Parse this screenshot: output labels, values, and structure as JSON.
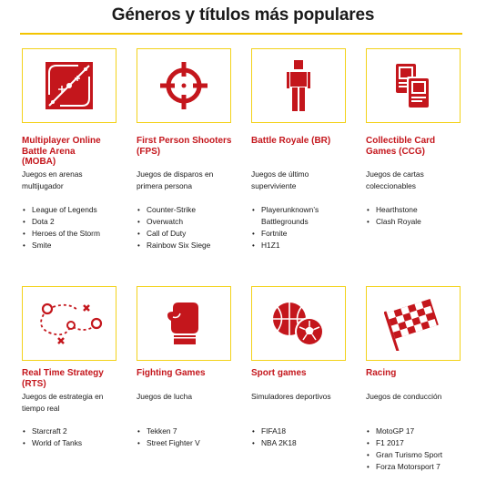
{
  "page": {
    "title": "Géneros y títulos más populares"
  },
  "rows": [
    [
      {
        "icon": "moba-map-icon",
        "category_lines": [
          "Multiplayer Online",
          "Battle Arena",
          "(MOBA)"
        ],
        "desc_lines": [
          "Juegos en arenas",
          "multijugador"
        ],
        "titles": [
          "League of Legends",
          "Dota 2",
          "Heroes of the Storm",
          "Smite"
        ]
      },
      {
        "icon": "crosshair-icon",
        "category_lines": [
          "First Person Shooters",
          "(FPS)"
        ],
        "desc_lines": [
          "Juegos de disparos en",
          "primera persona"
        ],
        "titles": [
          "Counter-Strike",
          "Overwatch",
          "Call of Duty",
          "Rainbow Six Siege"
        ]
      },
      {
        "icon": "standing-figure-icon",
        "category_lines": [
          "Battle Royale  (BR)"
        ],
        "desc_lines": [
          "Juegos de último",
          "superviviente"
        ],
        "titles": [
          "Playerunknown’s",
          "Battlegrounds",
          "Fortnite",
          "H1Z1"
        ],
        "continuation_index": 1
      },
      {
        "icon": "trading-cards-icon",
        "category_lines": [
          "Collectible Card",
          "Games (CCG)"
        ],
        "desc_lines": [
          "Juegos de cartas",
          "coleccionables"
        ],
        "titles": [
          "Hearthstone",
          "Clash Royale"
        ]
      }
    ],
    [
      {
        "icon": "strategy-plan-icon",
        "category_lines": [
          "Real Time Strategy",
          "(RTS)"
        ],
        "desc_lines": [
          "Juegos de estrategia en",
          "tiempo real"
        ],
        "titles": [
          "Starcraft 2",
          "World of Tanks"
        ]
      },
      {
        "icon": "boxing-glove-icon",
        "category_lines": [
          "Fighting Games"
        ],
        "desc_lines": [
          "Juegos de lucha"
        ],
        "titles": [
          "Tekken 7",
          "Street Fighter V"
        ]
      },
      {
        "icon": "sports-balls-icon",
        "category_lines": [
          "Sport games"
        ],
        "desc_lines": [
          "Simuladores deportivos"
        ],
        "titles": [
          "FIFA18",
          "NBA 2K18"
        ]
      },
      {
        "icon": "checkered-flag-icon",
        "category_lines": [
          "Racing"
        ],
        "desc_lines": [
          "Juegos de conducción"
        ],
        "titles": [
          "MotoGP 17",
          "F1 2017",
          "Gran Turismo Sport",
          "Forza Motorsport 7"
        ]
      }
    ]
  ],
  "colors": {
    "accent_red": "#c4161c",
    "frame_yellow": "#f3d21a",
    "rule_yellow": "#f3c400",
    "text": "#1a1a1a"
  }
}
